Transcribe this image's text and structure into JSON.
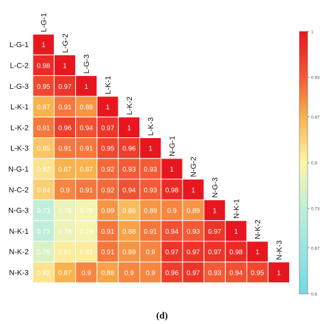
{
  "caption": "(d)",
  "chart_data": {
    "type": "heatmap",
    "layout": "lower-triangular",
    "labels": [
      "L-G-1",
      "L-G-2",
      "L-G-3",
      "L-K-1",
      "L-K-2",
      "L-K-3",
      "N-G-1",
      "N-G-2",
      "N-G-3",
      "N-K-1",
      "N-K-2",
      "N-K-3"
    ],
    "row_labels": [
      "L-G-1",
      "L-C-2",
      "L-G-3",
      "L-K-1",
      "L-K-2",
      "L-K-3",
      "N-G-1",
      "N-C-2",
      "N-G-3",
      "N-K-1",
      "N-K-2",
      "N-K-3"
    ],
    "values": [
      [
        1
      ],
      [
        0.98,
        1
      ],
      [
        0.95,
        0.97,
        1
      ],
      [
        0.87,
        0.91,
        0.89,
        1
      ],
      [
        0.91,
        0.96,
        0.94,
        0.97,
        1
      ],
      [
        0.85,
        0.91,
        0.91,
        0.95,
        0.96,
        1
      ],
      [
        0.82,
        0.87,
        0.87,
        0.92,
        0.93,
        0.93,
        1
      ],
      [
        0.84,
        0.9,
        0.91,
        0.92,
        0.94,
        0.93,
        0.98,
        1
      ],
      [
        0.73,
        0.78,
        0.79,
        0.89,
        0.86,
        0.89,
        0.9,
        0.89,
        1
      ],
      [
        0.73,
        0.78,
        0.79,
        0.91,
        0.88,
        0.91,
        0.94,
        0.93,
        0.97,
        1
      ],
      [
        0.76,
        0.81,
        0.81,
        0.91,
        0.89,
        0.9,
        0.97,
        0.97,
        0.97,
        0.98,
        1
      ],
      [
        0.82,
        0.87,
        0.9,
        0.88,
        0.9,
        0.9,
        0.96,
        0.97,
        0.93,
        0.94,
        0.95,
        1
      ]
    ],
    "colorbar": {
      "min": 0.6,
      "max": 1,
      "ticks": [
        1,
        0.93,
        0.87,
        0.8,
        0.73,
        0.67,
        0.6
      ],
      "colors": [
        {
          "value": 0.6,
          "color": "#74d8e6"
        },
        {
          "value": 0.73,
          "color": "#bfeed9"
        },
        {
          "value": 0.8,
          "color": "#fdf6a8"
        },
        {
          "value": 0.87,
          "color": "#f9b24c"
        },
        {
          "value": 0.93,
          "color": "#f45a35"
        },
        {
          "value": 1,
          "color": "#e8171f"
        }
      ]
    }
  }
}
